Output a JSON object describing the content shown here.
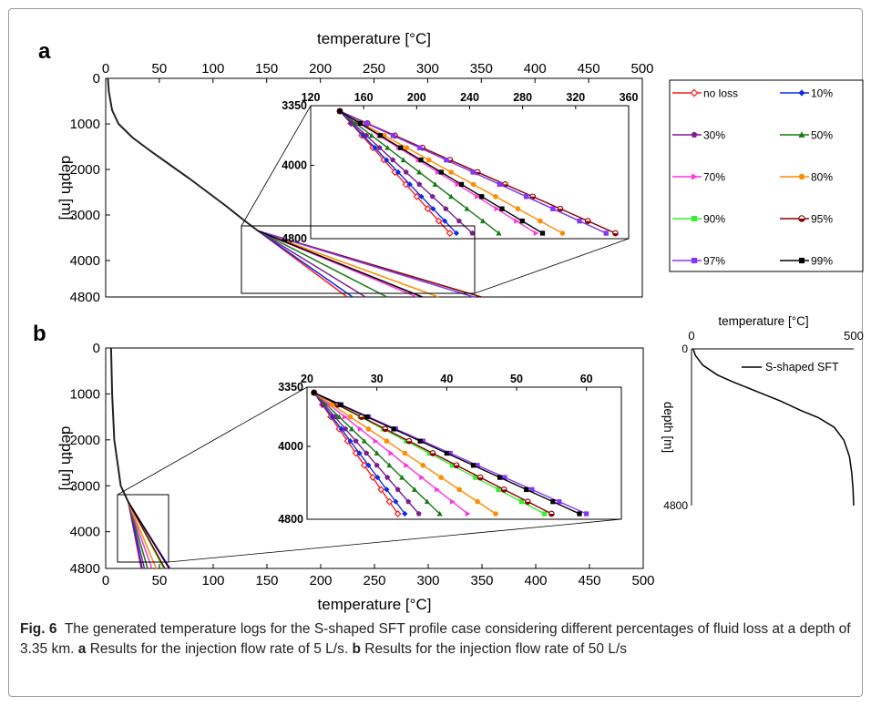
{
  "panel_a_label": "a",
  "panel_b_label": "b",
  "legend": [
    {
      "name": "no loss",
      "color": "#ff1a1a",
      "marker": "diamond-open"
    },
    {
      "name": "10%",
      "color": "#0a2ee6",
      "marker": "diamond"
    },
    {
      "name": "30%",
      "color": "#7a1f8e",
      "marker": "pentagon"
    },
    {
      "name": "50%",
      "color": "#167a16",
      "marker": "triangle"
    },
    {
      "name": "70%",
      "color": "#ff33dd",
      "marker": "triangle-right"
    },
    {
      "name": "80%",
      "color": "#ff8c00",
      "marker": "circle"
    },
    {
      "name": "90%",
      "color": "#33ee33",
      "marker": "square"
    },
    {
      "name": "95%",
      "color": "#8b0000",
      "marker": "circle-half"
    },
    {
      "name": "97%",
      "color": "#8833ff",
      "marker": "square"
    },
    {
      "name": "99%",
      "color": "#000000",
      "marker": "square"
    }
  ],
  "chart_data": [
    {
      "panel": "a",
      "type": "line",
      "xlabel": "temperature [°C]",
      "ylabel": "depth [m]",
      "xlim": [
        0,
        500
      ],
      "ylim": [
        4800,
        0
      ],
      "xticks": [
        0,
        50,
        100,
        150,
        200,
        250,
        300,
        350,
        400,
        450,
        500
      ],
      "yticks": [
        0,
        1000,
        2000,
        3000,
        4000,
        4800
      ],
      "common_profile": {
        "depth": [
          0,
          300,
          700,
          1000,
          1300,
          1600,
          1900,
          2200,
          2500,
          2800,
          3100,
          3350
        ],
        "temperature": [
          2,
          3,
          6,
          12,
          25,
          42,
          60,
          78,
          95,
          112,
          128,
          142
        ]
      },
      "series": [
        {
          "name": "no loss",
          "depth": [
            3350,
            4800
          ],
          "temperature": [
            142,
            225
          ]
        },
        {
          "name": "10%",
          "depth": [
            3350,
            4800
          ],
          "temperature": [
            142,
            230
          ]
        },
        {
          "name": "30%",
          "depth": [
            3350,
            4800
          ],
          "temperature": [
            142,
            242
          ]
        },
        {
          "name": "50%",
          "depth": [
            3350,
            4800
          ],
          "temperature": [
            142,
            262
          ]
        },
        {
          "name": "70%",
          "depth": [
            3350,
            4800
          ],
          "temperature": [
            142,
            290
          ]
        },
        {
          "name": "80%",
          "depth": [
            3350,
            4800
          ],
          "temperature": [
            142,
            310
          ]
        },
        {
          "name": "90%",
          "depth": [
            3350,
            4800
          ],
          "temperature": [
            142,
            343
          ]
        },
        {
          "name": "95%",
          "depth": [
            3350,
            4800
          ],
          "temperature": [
            142,
            350
          ]
        },
        {
          "name": "97%",
          "depth": [
            3350,
            4800
          ],
          "temperature": [
            142,
            343
          ]
        },
        {
          "name": "99%",
          "depth": [
            3350,
            4800
          ],
          "temperature": [
            142,
            295
          ]
        }
      ],
      "inset": {
        "xlim": [
          120,
          360
        ],
        "ylim": [
          4800,
          3350
        ],
        "xticks": [
          120,
          160,
          200,
          240,
          280,
          320,
          360
        ],
        "yticks": [
          3350,
          4000,
          4800
        ]
      }
    },
    {
      "panel": "b",
      "type": "line",
      "xlabel": "temperature [°C]",
      "ylabel": "depth [m]",
      "xlim": [
        0,
        500
      ],
      "ylim": [
        4800,
        0
      ],
      "xticks": [
        0,
        50,
        100,
        150,
        200,
        250,
        300,
        350,
        400,
        450,
        500
      ],
      "yticks": [
        0,
        1000,
        2000,
        3000,
        4000,
        4800
      ],
      "common_profile": {
        "depth": [
          0,
          1000,
          2000,
          3000,
          3350
        ],
        "temperature": [
          5,
          6,
          8,
          14,
          21
        ]
      },
      "series": [
        {
          "name": "no loss",
          "depth": [
            3350,
            4800
          ],
          "temperature": [
            21,
            33
          ]
        },
        {
          "name": "10%",
          "depth": [
            3350,
            4800
          ],
          "temperature": [
            21,
            34
          ]
        },
        {
          "name": "30%",
          "depth": [
            3350,
            4800
          ],
          "temperature": [
            21,
            36
          ]
        },
        {
          "name": "50%",
          "depth": [
            3350,
            4800
          ],
          "temperature": [
            21,
            39
          ]
        },
        {
          "name": "70%",
          "depth": [
            3350,
            4800
          ],
          "temperature": [
            21,
            43
          ]
        },
        {
          "name": "80%",
          "depth": [
            3350,
            4800
          ],
          "temperature": [
            21,
            47
          ]
        },
        {
          "name": "90%",
          "depth": [
            3350,
            4800
          ],
          "temperature": [
            21,
            54
          ]
        },
        {
          "name": "95%",
          "depth": [
            3350,
            4800
          ],
          "temperature": [
            21,
            55
          ]
        },
        {
          "name": "97%",
          "depth": [
            3350,
            4800
          ],
          "temperature": [
            21,
            60
          ]
        },
        {
          "name": "99%",
          "depth": [
            3350,
            4800
          ],
          "temperature": [
            21,
            59
          ]
        }
      ],
      "inset": {
        "xlim": [
          20,
          65
        ],
        "ylim": [
          4800,
          3350
        ],
        "xticks": [
          20,
          30,
          40,
          50,
          60
        ],
        "yticks": [
          3350,
          4000,
          4800
        ]
      }
    },
    {
      "panel": "sft",
      "type": "line",
      "xlabel": "temperature [°C]",
      "ylabel": "depth [m]",
      "xlim": [
        0,
        500
      ],
      "ylim": [
        4800,
        0
      ],
      "xticks": [
        0,
        500
      ],
      "yticks": [
        0,
        4800
      ],
      "series": [
        {
          "name": "S-shaped SFT",
          "depth": [
            0,
            200,
            500,
            800,
            1000,
            1300,
            1600,
            1900,
            2100,
            2400,
            2800,
            3300,
            3800,
            4300,
            4800
          ],
          "temperature": [
            5,
            12,
            35,
            80,
            125,
            200,
            275,
            340,
            390,
            440,
            470,
            487,
            494,
            498,
            500
          ]
        }
      ]
    }
  ],
  "caption": {
    "fig_label": "Fig. 6",
    "text1": "The generated temperature logs for the S-shaped SFT profile case considering different percentages of fluid loss at a depth of 3.35 km.",
    "label_a": "a",
    "text_a": "Results for the injection flow rate of 5 L/s.",
    "label_b": "b",
    "text_b": "Results for the injection flow rate of 50 L/s"
  }
}
